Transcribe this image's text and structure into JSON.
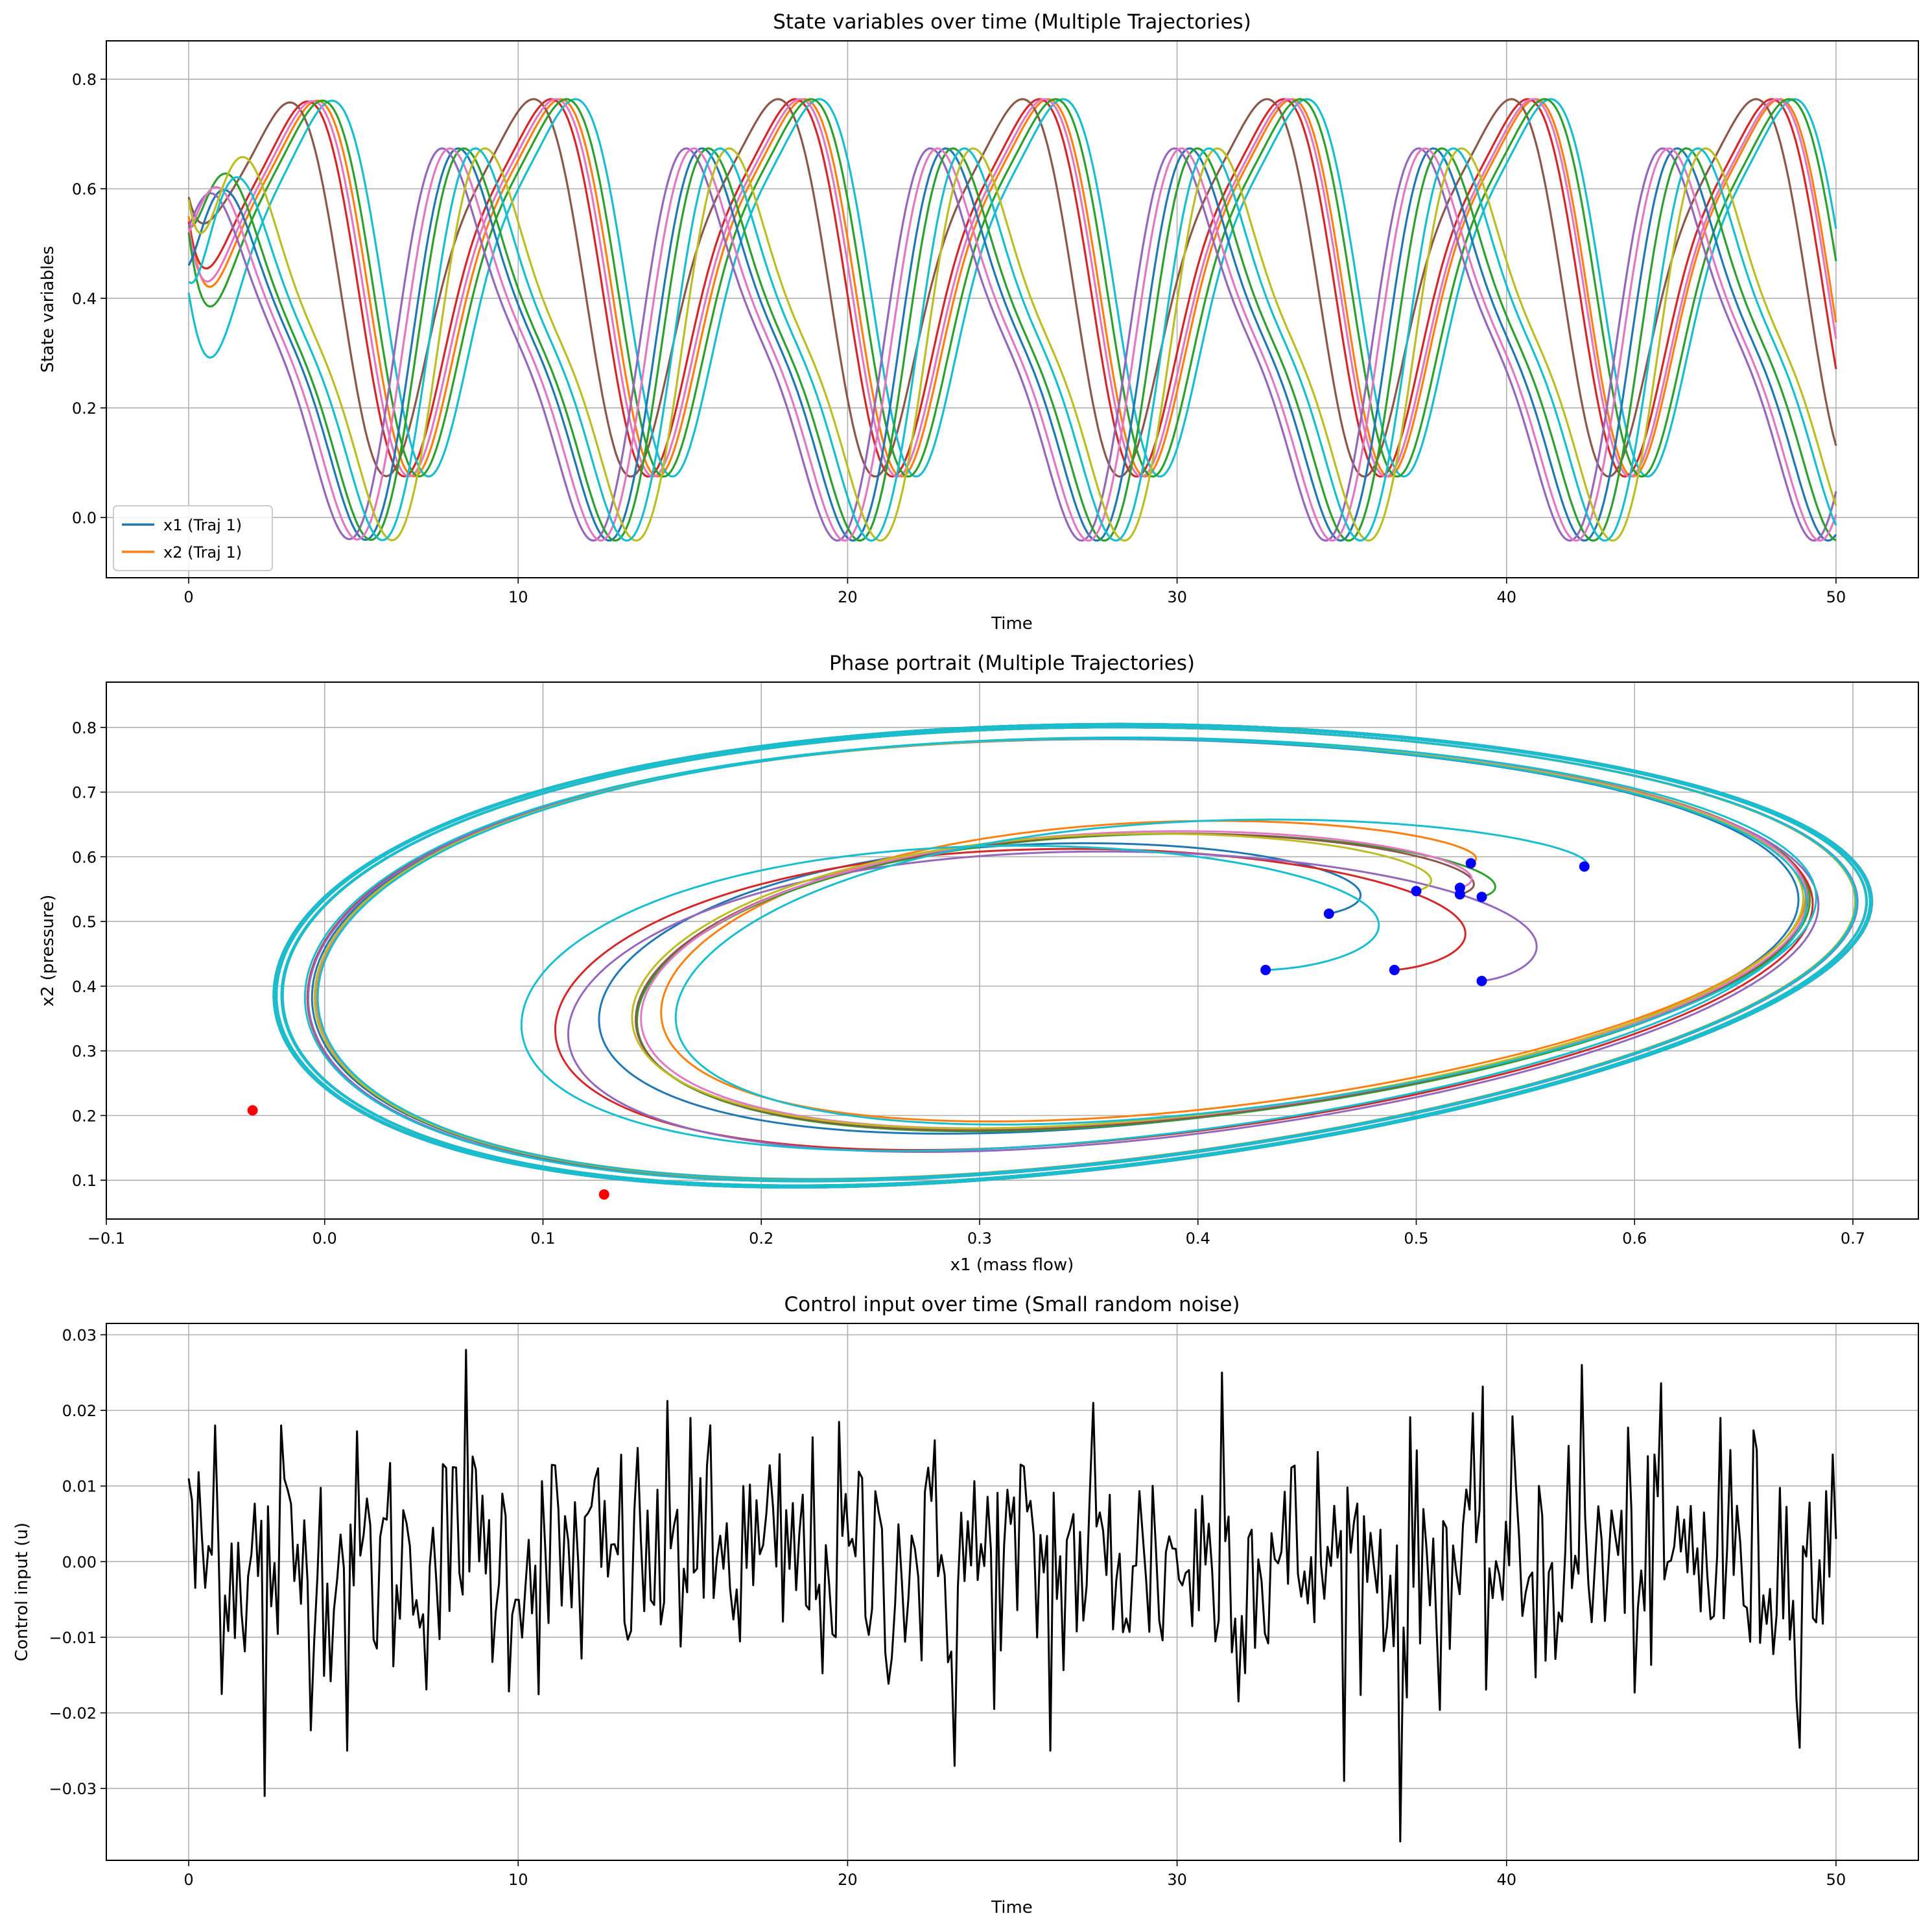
{
  "colors": {
    "tab10": [
      "#1f77b4",
      "#ff7f0e",
      "#2ca02c",
      "#d62728",
      "#9467bd",
      "#8c564b",
      "#e377c2",
      "#7f7f7f",
      "#bcbd22",
      "#17becf"
    ],
    "control": "#000000",
    "start_marker": "#0000ff",
    "end_marker": "#ff0000",
    "grid": "#b0b0b0"
  },
  "chart_data": [
    {
      "type": "line",
      "title": "State variables over time (Multiple Trajectories)",
      "xlabel": "Time",
      "ylabel": "State variables",
      "xlim": [
        -2.5,
        52.5
      ],
      "ylim": [
        -0.11,
        0.87
      ],
      "xticks": [
        0,
        10,
        20,
        30,
        40,
        50
      ],
      "yticks": [
        0.0,
        0.2,
        0.4,
        0.6,
        0.8
      ],
      "grid": true,
      "legend": {
        "position": "lower-left",
        "entries": [
          {
            "label": "x1 (Traj 1)",
            "color": "#1f77b4"
          },
          {
            "label": "x2 (Traj 1)",
            "color": "#ff7f0e"
          }
        ]
      },
      "t_range": [
        0,
        50
      ],
      "oscillation": {
        "period": 7.4,
        "x2_min": 0.09,
        "x2_max": 0.825,
        "x1_min": -0.05,
        "x1_max": 0.685
      },
      "series": [
        {
          "kind": "x2",
          "color": "#ff7f0e",
          "x0": 0.55,
          "phase_shift": 0.3
        },
        {
          "kind": "x2",
          "color": "#d62728",
          "x0": 0.54,
          "phase_shift": 0.0
        },
        {
          "kind": "x2",
          "color": "#8c564b",
          "x0": 0.585,
          "phase_shift": -0.55
        },
        {
          "kind": "x2",
          "color": "#17becf",
          "x0": 0.41,
          "phase_shift": 0.75
        },
        {
          "kind": "x2",
          "color": "#e377c2",
          "x0": 0.53,
          "phase_shift": 0.15
        },
        {
          "kind": "x2",
          "color": "#2ca02c",
          "x0": 0.52,
          "phase_shift": 0.45
        },
        {
          "kind": "x1",
          "color": "#1f77b4",
          "x0": 0.46,
          "phase_shift": 0.05
        },
        {
          "kind": "x1",
          "color": "#9467bd",
          "x0": 0.53,
          "phase_shift": -0.45
        },
        {
          "kind": "x1",
          "color": "#2ca02c",
          "x0": 0.53,
          "phase_shift": 0.2
        },
        {
          "kind": "x1",
          "color": "#e377c2",
          "x0": 0.52,
          "phase_shift": -0.2
        },
        {
          "kind": "x1",
          "color": "#bcbd22",
          "x0": 0.58,
          "phase_shift": 0.85
        },
        {
          "kind": "x1",
          "color": "#17becf",
          "x0": 0.43,
          "phase_shift": 0.55
        }
      ]
    },
    {
      "type": "line",
      "title": "Phase portrait (Multiple Trajectories)",
      "xlabel": "x1 (mass flow)",
      "ylabel": "x2 (pressure)",
      "xlim": [
        -0.1,
        0.73
      ],
      "ylim": [
        0.04,
        0.87
      ],
      "xticks": [
        -0.1,
        0.0,
        0.1,
        0.2,
        0.3,
        0.4,
        0.5,
        0.6,
        0.7
      ],
      "yticks": [
        0.1,
        0.2,
        0.3,
        0.4,
        0.5,
        0.6,
        0.7,
        0.8
      ],
      "grid": true,
      "limit_cycle": {
        "x1_min": -0.065,
        "x1_max": 0.69,
        "x2_min": 0.075,
        "x2_max": 0.83
      },
      "trajectories": [
        {
          "color": "#1f77b4",
          "start": [
            0.46,
            0.512
          ]
        },
        {
          "color": "#ff7f0e",
          "start": [
            0.525,
            0.59
          ]
        },
        {
          "color": "#2ca02c",
          "start": [
            0.53,
            0.538
          ]
        },
        {
          "color": "#d62728",
          "start": [
            0.49,
            0.425
          ]
        },
        {
          "color": "#9467bd",
          "start": [
            0.53,
            0.408
          ]
        },
        {
          "color": "#8c564b",
          "start": [
            0.52,
            0.542
          ]
        },
        {
          "color": "#e377c2",
          "start": [
            0.52,
            0.552
          ]
        },
        {
          "color": "#bcbd22",
          "start": [
            0.5,
            0.547
          ]
        },
        {
          "color": "#17becf",
          "start": [
            0.431,
            0.425
          ]
        },
        {
          "color": "#17becf",
          "start": [
            0.577,
            0.585
          ]
        }
      ],
      "end_markers": [
        [
          -0.033,
          0.208
        ],
        [
          0.128,
          0.078
        ]
      ],
      "outer_loop_color": "#7f7f7f"
    },
    {
      "type": "line",
      "title": "Control input over time (Small random noise)",
      "xlabel": "Time",
      "ylabel": "Control input (u)",
      "xlim": [
        -2.5,
        52.5
      ],
      "ylim": [
        -0.0395,
        0.0315
      ],
      "xticks": [
        0,
        10,
        20,
        30,
        40,
        50
      ],
      "yticks": [
        -0.03,
        -0.02,
        -0.01,
        0.0,
        0.01,
        0.02,
        0.03
      ],
      "grid": true,
      "series": [
        {
          "name": "u",
          "color": "#000000",
          "t_range": [
            0,
            50
          ],
          "n_samples": 500,
          "noise_std": 0.01,
          "highlighted_values": [
            [
              0.0,
              0.011
            ],
            [
              0.8,
              0.018
            ],
            [
              2.3,
              -0.031
            ],
            [
              2.8,
              0.018
            ],
            [
              4.8,
              -0.025
            ],
            [
              8.4,
              0.028
            ],
            [
              15.2,
              0.019
            ],
            [
              23.2,
              -0.027
            ],
            [
              26.2,
              -0.025
            ],
            [
              27.5,
              0.021
            ],
            [
              31.4,
              0.025
            ],
            [
              36.8,
              -0.037
            ],
            [
              42.3,
              0.026
            ],
            [
              46.5,
              0.019
            ],
            [
              50.0,
              0.003
            ]
          ]
        }
      ]
    }
  ]
}
